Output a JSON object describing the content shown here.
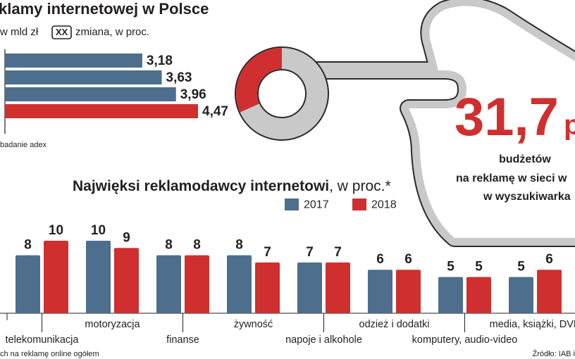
{
  "chart_data": [
    {
      "type": "hbar",
      "title": "klamy internetowej w Polsce",
      "unit_label": "w mld zł",
      "change_box": "XX",
      "change_label": "zmiana, w proc.",
      "values": [
        3.18,
        3.63,
        3.96,
        4.47
      ],
      "value_labels": [
        "3,18",
        "3,63",
        "3,96",
        "4,47"
      ],
      "colors": [
        "#4d6e8c",
        "#4d6e8c",
        "#4d6e8c",
        "#cf2f2e"
      ],
      "note": "badanie adex"
    },
    {
      "type": "donut",
      "values": [
        31.7
      ],
      "value_labels": [
        "31,7"
      ],
      "unit_text": "p",
      "color": "#cf2f2e",
      "rest_color": "#c9c9c9",
      "caption": [
        "budżetów",
        "na reklamę w sieci w",
        "w wyszukiwarka"
      ]
    },
    {
      "type": "grouped_bar",
      "title": "Najwięksi reklamodawcy internetowi",
      "title_suffix": ", w proc.*",
      "categories": [
        "telekomunikacja",
        "motoryzacja",
        "finanse",
        "żywność",
        "napoje i alkohole",
        "odzież i dodatki",
        "komputery, audio-video",
        "media, książki, DVD"
      ],
      "series": [
        {
          "name": "2017",
          "color": "#4d6e8c",
          "values": [
            8,
            10,
            8,
            8,
            7,
            6,
            5,
            5
          ]
        },
        {
          "name": "2018",
          "color": "#cf2f2e",
          "values": [
            10,
            9,
            8,
            7,
            7,
            6,
            5,
            6
          ]
        }
      ]
    }
  ],
  "footer": {
    "footnote": "ch na reklamę online ogółem",
    "source": "Źródło: IAB i"
  }
}
